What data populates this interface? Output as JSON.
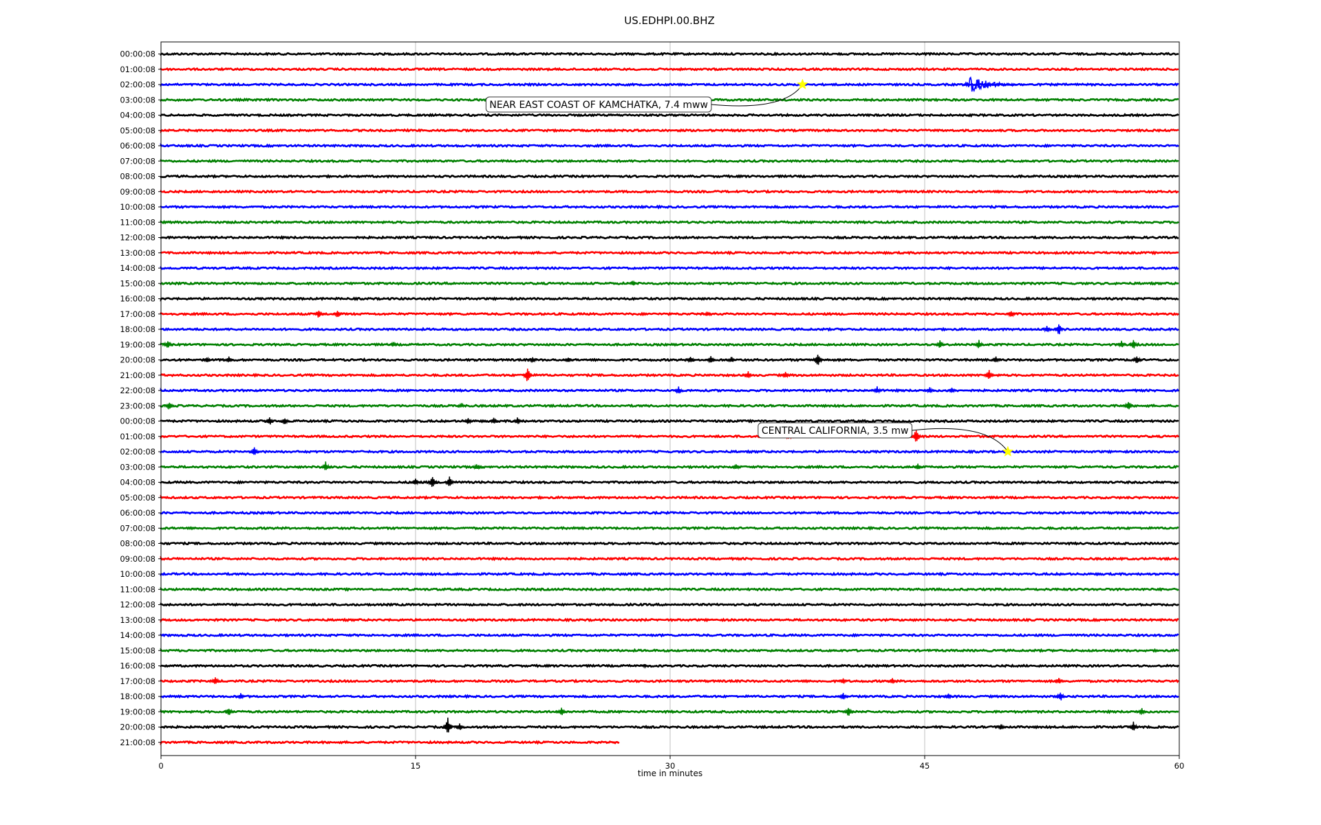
{
  "chart_data": {
    "type": "line",
    "title": "US.EDHPI.00.BHZ",
    "xlabel": "time in minutes",
    "ylabel": "",
    "xlim": [
      0,
      60
    ],
    "xticks": [
      0,
      15,
      30,
      45,
      60
    ],
    "grid": "vertical",
    "row_labels": [
      "00:00:08",
      "01:00:08",
      "02:00:08",
      "03:00:08",
      "04:00:08",
      "05:00:08",
      "06:00:08",
      "07:00:08",
      "08:00:08",
      "09:00:08",
      "10:00:08",
      "11:00:08",
      "12:00:08",
      "13:00:08",
      "14:00:08",
      "15:00:08",
      "16:00:08",
      "17:00:08",
      "18:00:08",
      "19:00:08",
      "20:00:08",
      "21:00:08",
      "22:00:08",
      "23:00:08",
      "00:00:08",
      "01:00:08",
      "02:00:08",
      "03:00:08",
      "04:00:08",
      "05:00:08",
      "06:00:08",
      "07:00:08",
      "08:00:08",
      "09:00:08",
      "10:00:08",
      "11:00:08",
      "12:00:08",
      "13:00:08",
      "14:00:08",
      "15:00:08",
      "16:00:08",
      "17:00:08",
      "18:00:08",
      "19:00:08",
      "20:00:08",
      "21:00:08"
    ],
    "trace_colors": [
      "#000000",
      "#ff0000",
      "#0000ff",
      "#008000"
    ],
    "last_row_end_minute": 27,
    "events": [
      {
        "label": "NEAR EAST COAST OF KAMCHATKA, 7.4 mww",
        "row": 2,
        "minute": 37.8,
        "marker_color": "#ffff00",
        "box_position": "left"
      },
      {
        "label": "CENTRAL CALIFORNIA, 3.5 mw",
        "row": 26,
        "minute": 49.9,
        "marker_color": "#ffff00",
        "box_position": "left"
      }
    ],
    "wave_trains": [
      {
        "row": 2,
        "start": 47.3,
        "end": 51,
        "amplitude": 12
      }
    ],
    "spikes": [
      {
        "row": 15,
        "minute": 27.8,
        "amp": 4
      },
      {
        "row": 17,
        "minute": 9.3,
        "amp": 7
      },
      {
        "row": 17,
        "minute": 10.4,
        "amp": 6
      },
      {
        "row": 17,
        "minute": 32.2,
        "amp": 4
      },
      {
        "row": 17,
        "minute": 50.1,
        "amp": 6
      },
      {
        "row": 18,
        "minute": 52.2,
        "amp": 6
      },
      {
        "row": 18,
        "minute": 52.9,
        "amp": 10
      },
      {
        "row": 19,
        "minute": 0.4,
        "amp": 8
      },
      {
        "row": 19,
        "minute": 13.7,
        "amp": 4
      },
      {
        "row": 19,
        "minute": 45.9,
        "amp": 7
      },
      {
        "row": 19,
        "minute": 48.2,
        "amp": 7
      },
      {
        "row": 19,
        "minute": 56.6,
        "amp": 6
      },
      {
        "row": 19,
        "minute": 57.3,
        "amp": 9
      },
      {
        "row": 20,
        "minute": 2.7,
        "amp": 5
      },
      {
        "row": 20,
        "minute": 4.0,
        "amp": 5
      },
      {
        "row": 20,
        "minute": 21.9,
        "amp": 6
      },
      {
        "row": 20,
        "minute": 24.0,
        "amp": 5
      },
      {
        "row": 20,
        "minute": 31.2,
        "amp": 6
      },
      {
        "row": 20,
        "minute": 32.4,
        "amp": 6
      },
      {
        "row": 20,
        "minute": 33.6,
        "amp": 5
      },
      {
        "row": 20,
        "minute": 38.7,
        "amp": 12
      },
      {
        "row": 20,
        "minute": 49.2,
        "amp": 6
      },
      {
        "row": 20,
        "minute": 57.5,
        "amp": 8
      },
      {
        "row": 21,
        "minute": 21.6,
        "amp": 12
      },
      {
        "row": 21,
        "minute": 34.6,
        "amp": 6
      },
      {
        "row": 21,
        "minute": 36.8,
        "amp": 5
      },
      {
        "row": 21,
        "minute": 48.8,
        "amp": 8
      },
      {
        "row": 22,
        "minute": 30.5,
        "amp": 6
      },
      {
        "row": 22,
        "minute": 42.2,
        "amp": 6
      },
      {
        "row": 22,
        "minute": 45.3,
        "amp": 5
      },
      {
        "row": 22,
        "minute": 46.6,
        "amp": 5
      },
      {
        "row": 23,
        "minute": 0.5,
        "amp": 7
      },
      {
        "row": 23,
        "minute": 17.7,
        "amp": 4
      },
      {
        "row": 23,
        "minute": 57.0,
        "amp": 8
      },
      {
        "row": 24,
        "minute": 6.4,
        "amp": 7
      },
      {
        "row": 24,
        "minute": 7.3,
        "amp": 6
      },
      {
        "row": 24,
        "minute": 18.1,
        "amp": 6
      },
      {
        "row": 24,
        "minute": 19.6,
        "amp": 5
      },
      {
        "row": 24,
        "minute": 21.0,
        "amp": 6
      },
      {
        "row": 25,
        "minute": 37.0,
        "amp": 6
      },
      {
        "row": 25,
        "minute": 44.5,
        "amp": 12
      },
      {
        "row": 26,
        "minute": 5.5,
        "amp": 8
      },
      {
        "row": 27,
        "minute": 9.7,
        "amp": 8
      },
      {
        "row": 27,
        "minute": 18.6,
        "amp": 5
      },
      {
        "row": 27,
        "minute": 33.9,
        "amp": 5
      },
      {
        "row": 27,
        "minute": 44.6,
        "amp": 5
      },
      {
        "row": 28,
        "minute": 15.0,
        "amp": 6
      },
      {
        "row": 28,
        "minute": 16.0,
        "amp": 12
      },
      {
        "row": 28,
        "minute": 17.0,
        "amp": 9
      },
      {
        "row": 40,
        "minute": 28.5,
        "amp": 3
      },
      {
        "row": 41,
        "minute": 3.2,
        "amp": 8
      },
      {
        "row": 41,
        "minute": 40.2,
        "amp": 5
      },
      {
        "row": 41,
        "minute": 43.1,
        "amp": 5
      },
      {
        "row": 41,
        "minute": 52.9,
        "amp": 5
      },
      {
        "row": 42,
        "minute": 4.7,
        "amp": 5
      },
      {
        "row": 42,
        "minute": 40.2,
        "amp": 6
      },
      {
        "row": 42,
        "minute": 46.4,
        "amp": 5
      },
      {
        "row": 42,
        "minute": 53.0,
        "amp": 8
      },
      {
        "row": 43,
        "minute": 4.0,
        "amp": 7
      },
      {
        "row": 43,
        "minute": 23.6,
        "amp": 7
      },
      {
        "row": 43,
        "minute": 40.5,
        "amp": 8
      },
      {
        "row": 43,
        "minute": 57.8,
        "amp": 6
      },
      {
        "row": 44,
        "minute": 16.9,
        "amp": 14
      },
      {
        "row": 44,
        "minute": 17.6,
        "amp": 6
      },
      {
        "row": 44,
        "minute": 49.5,
        "amp": 5
      },
      {
        "row": 44,
        "minute": 57.3,
        "amp": 8
      }
    ]
  }
}
